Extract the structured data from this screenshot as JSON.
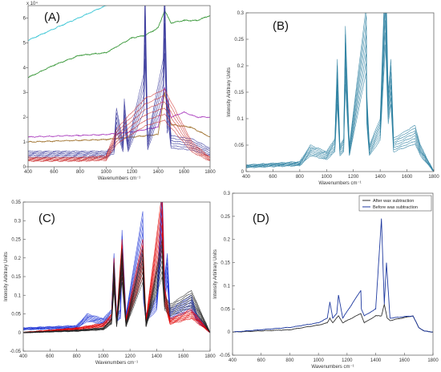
{
  "chart_data": [
    {
      "type": "line",
      "panel_label": "(A)",
      "xlabel": "Wavenumbers cm⁻¹",
      "ylabel": "",
      "exponent_label": "x 10⁴",
      "xlim": [
        400,
        1800
      ],
      "ylim": [
        0,
        6.5
      ],
      "x_ticks": [
        400,
        600,
        800,
        1000,
        1200,
        1400,
        1600,
        1800
      ],
      "y_ticks": [
        0,
        1,
        2,
        3,
        4,
        5,
        6
      ],
      "grid": false,
      "series": [
        {
          "color": "#3fc7d6",
          "x": [
            400,
            700,
            1000
          ],
          "y": [
            5.1,
            5.8,
            6.5
          ]
        },
        {
          "color": "#3f9b3f",
          "x": [
            400,
            600,
            800,
            1000,
            1200,
            1300,
            1400,
            1450,
            1500,
            1600,
            1700,
            1800
          ],
          "y": [
            3.6,
            4.1,
            4.5,
            4.6,
            5.2,
            5.3,
            5.6,
            6.3,
            5.8,
            5.9,
            5.9,
            6.1
          ]
        },
        {
          "color": "#b24fc4",
          "x": [
            400,
            1000,
            1200,
            1400,
            1450,
            1500,
            1600,
            1700,
            1800
          ],
          "y": [
            1.2,
            1.3,
            1.4,
            1.6,
            3.2,
            2.0,
            2.2,
            2.0,
            2.0
          ]
        },
        {
          "color": "#a57a3a",
          "x": [
            400,
            1000,
            1400,
            1450,
            1500,
            1650,
            1800
          ],
          "y": [
            1.0,
            1.1,
            1.3,
            3.0,
            1.7,
            1.6,
            1.2
          ]
        },
        {
          "color": "#333399",
          "x": [
            400,
            1000,
            1060,
            1080,
            1130,
            1140,
            1170,
            1290,
            1300,
            1320,
            1440,
            1450,
            1470,
            1480,
            1500,
            1660,
            1800
          ],
          "y": [
            0.5,
            0.5,
            0.7,
            1.9,
            0.8,
            2.2,
            0.8,
            3.0,
            5.8,
            0.9,
            3.5,
            6.1,
            1.8,
            2.2,
            1.0,
            0.9,
            0.6
          ]
        },
        {
          "color": "#cc3333",
          "x": [
            400,
            800,
            1000,
            1080,
            1140,
            1300,
            1450,
            1660,
            1800
          ],
          "y": [
            0.3,
            0.3,
            0.35,
            1.2,
            1.5,
            2.2,
            2.5,
            0.8,
            0.3
          ]
        }
      ]
    },
    {
      "type": "line",
      "panel_label": "(B)",
      "xlabel": "Wavenumbers cm⁻¹",
      "ylabel": "Intensity Arbitrary Units",
      "xlim": [
        400,
        1800
      ],
      "ylim": [
        0,
        0.3
      ],
      "x_ticks": [
        400,
        600,
        800,
        1000,
        1200,
        1400,
        1600,
        1800
      ],
      "y_ticks": [
        0,
        0.05,
        0.1,
        0.15,
        0.2,
        0.25,
        0.3
      ],
      "grid": false,
      "series": [
        {
          "color": "#2a7fa0",
          "x": [
            400,
            800,
            880,
            1000,
            1062,
            1080,
            1100,
            1128,
            1140,
            1170,
            1296,
            1300,
            1320,
            1400,
            1440,
            1460,
            1480,
            1500,
            1660,
            1700,
            1800
          ],
          "y": [
            0.01,
            0.015,
            0.04,
            0.03,
            0.05,
            0.17,
            0.04,
            0.05,
            0.22,
            0.04,
            0.25,
            0.12,
            0.04,
            0.08,
            0.32,
            0.12,
            0.17,
            0.05,
            0.07,
            0.04,
            0.0
          ]
        }
      ]
    },
    {
      "type": "line",
      "panel_label": "(C)",
      "xlabel": "Wavenumbers cm⁻¹",
      "ylabel": "Intensity Arbitrary Units",
      "xlim": [
        400,
        1800
      ],
      "ylim": [
        -0.05,
        0.35
      ],
      "x_ticks": [
        400,
        600,
        800,
        1000,
        1200,
        1400,
        1600,
        1800
      ],
      "y_ticks": [
        -0.05,
        0,
        0.05,
        0.1,
        0.15,
        0.2,
        0.25,
        0.3,
        0.35
      ],
      "grid": false,
      "series": [
        {
          "color": "#1f35d6",
          "x": [
            400,
            800,
            880,
            1000,
            1062,
            1080,
            1100,
            1128,
            1140,
            1170,
            1296,
            1300,
            1320,
            1400,
            1440,
            1460,
            1480,
            1500,
            1660,
            1700,
            1800
          ],
          "y": [
            0.01,
            0.015,
            0.04,
            0.03,
            0.05,
            0.17,
            0.04,
            0.05,
            0.22,
            0.04,
            0.26,
            0.12,
            0.04,
            0.08,
            0.32,
            0.12,
            0.17,
            0.05,
            0.08,
            0.04,
            0.0
          ]
        },
        {
          "color": "#e00000",
          "x": [
            400,
            800,
            1000,
            1062,
            1080,
            1100,
            1140,
            1170,
            1296,
            1320,
            1440,
            1460,
            1500,
            1660,
            1800
          ],
          "y": [
            0.0,
            0.01,
            0.02,
            0.04,
            0.16,
            0.03,
            0.2,
            0.03,
            0.2,
            0.03,
            0.3,
            0.1,
            0.03,
            0.05,
            0.0
          ]
        },
        {
          "color": "#222222",
          "x": [
            400,
            800,
            1000,
            1062,
            1080,
            1100,
            1140,
            1170,
            1296,
            1320,
            1440,
            1460,
            1500,
            1660,
            1800
          ],
          "y": [
            0.0,
            0.005,
            0.01,
            0.03,
            0.15,
            0.02,
            0.18,
            0.02,
            0.18,
            0.02,
            0.2,
            0.08,
            0.06,
            0.09,
            0.0
          ]
        }
      ]
    },
    {
      "type": "line",
      "panel_label": "(D)",
      "xlabel": "Wavenumbers cm⁻¹",
      "ylabel": "Intensity Arbitrary Units",
      "xlim": [
        400,
        1800
      ],
      "ylim": [
        -0.05,
        0.3
      ],
      "x_ticks": [
        400,
        600,
        800,
        1000,
        1200,
        1400,
        1600,
        1800
      ],
      "y_ticks": [
        -0.05,
        0,
        0.05,
        0.1,
        0.15,
        0.2,
        0.25,
        0.3
      ],
      "grid": false,
      "legend": "top-right",
      "series": [
        {
          "name": "After wax subtraction",
          "color": "#333333",
          "x": [
            400,
            800,
            1000,
            1062,
            1080,
            1100,
            1140,
            1170,
            1296,
            1320,
            1400,
            1440,
            1460,
            1480,
            1500,
            1660,
            1700,
            1740,
            1800
          ],
          "y": [
            0.0,
            0.005,
            0.015,
            0.02,
            0.03,
            0.02,
            0.035,
            0.02,
            0.04,
            0.02,
            0.035,
            0.035,
            0.06,
            0.03,
            0.025,
            0.035,
            0.01,
            0.002,
            0.0
          ]
        },
        {
          "name": "Before wax subtraction",
          "color": "#1f3aa0",
          "x": [
            400,
            800,
            1000,
            1062,
            1080,
            1100,
            1128,
            1140,
            1170,
            1296,
            1300,
            1320,
            1400,
            1440,
            1460,
            1475,
            1500,
            1660,
            1700,
            1740,
            1800
          ],
          "y": [
            0.0,
            0.01,
            0.02,
            0.03,
            0.065,
            0.03,
            0.04,
            0.08,
            0.03,
            0.09,
            0.05,
            0.035,
            0.05,
            0.245,
            0.06,
            0.15,
            0.03,
            0.035,
            0.01,
            0.002,
            0.0
          ]
        }
      ]
    }
  ]
}
